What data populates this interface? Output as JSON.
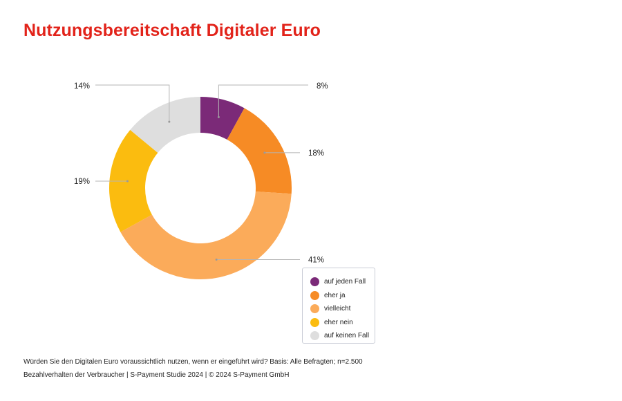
{
  "title": "Nutzungsbereitschaft Digitaler Euro",
  "footnote": "Würden Sie den Digitalen Euro voraussichtlich nutzen, wenn er eingeführt wird? Basis: Alle Befragten; n=2.500",
  "source": "Bezahlverhalten der Verbraucher  |  S-Payment Studie 2024  |  © 2024 S-Payment GmbH",
  "chart_data": {
    "type": "pie",
    "variant": "donut",
    "categories": [
      "auf jeden Fall",
      "eher ja",
      "vielleicht",
      "eher nein",
      "auf keinen Fall"
    ],
    "values": [
      8,
      18,
      41,
      19,
      14
    ],
    "value_labels": [
      "8%",
      "18%",
      "41%",
      "19%",
      "14%"
    ],
    "colors": [
      "#7b2a78",
      "#f68b25",
      "#fbab5a",
      "#fbbc0f",
      "#dedede"
    ],
    "legend": {
      "placement": "bottom-right",
      "items": [
        "auf jeden Fall",
        "eher ja",
        "vielleicht",
        "eher nein",
        "auf keinen Fall"
      ]
    }
  }
}
